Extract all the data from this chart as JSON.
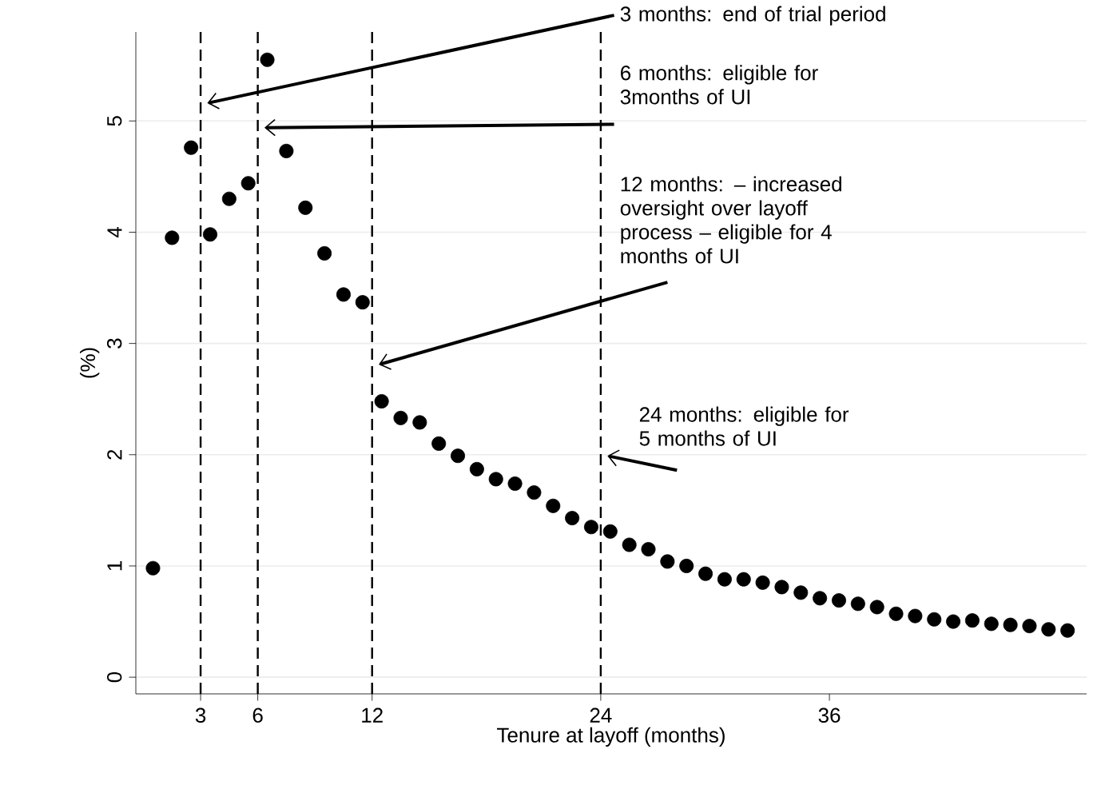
{
  "chart_data": {
    "type": "scatter",
    "xlabel": "Tenure at layoff (months)",
    "ylabel": "(%)",
    "x": [
      0.5,
      1.5,
      2.5,
      3.5,
      4.5,
      5.5,
      6.5,
      7.5,
      8.5,
      9.5,
      10.5,
      11.5,
      12.5,
      13.5,
      14.5,
      15.5,
      16.5,
      17.5,
      18.5,
      19.5,
      20.5,
      21.5,
      22.5,
      23.5,
      24.5,
      25.5,
      26.5,
      27.5,
      28.5,
      29.5,
      30.5,
      31.5,
      32.5,
      33.5,
      34.5,
      35.5,
      36.5,
      37.5,
      38.5,
      39.5,
      40.5,
      41.5,
      42.5,
      43.5,
      44.5,
      45.5,
      46.5,
      47.5,
      48.5
    ],
    "series": [
      {
        "color": "#000000",
        "values": [
          0.98,
          3.95,
          4.76,
          3.98,
          4.3,
          4.44,
          5.55,
          4.73,
          4.22,
          3.81,
          3.44,
          3.37,
          2.48,
          2.33,
          2.29,
          2.1,
          1.99,
          1.87,
          1.78,
          1.74,
          1.66,
          1.54,
          1.43,
          1.35,
          1.31,
          1.19,
          1.15,
          1.04,
          1.0,
          0.93,
          0.88,
          0.88,
          0.85,
          0.81,
          0.76,
          0.71,
          0.69,
          0.66,
          0.63,
          0.57,
          0.55,
          0.52,
          0.5,
          0.51,
          0.48,
          0.47,
          0.46,
          0.43,
          0.42
        ]
      }
    ],
    "xlim": [
      -0.4,
      49.5
    ],
    "ylim": [
      -0.15,
      5.8
    ],
    "xticks": [
      3,
      6,
      12,
      24,
      36
    ],
    "yticks": [
      0,
      1,
      2,
      3,
      4,
      5
    ],
    "grid": "y",
    "marker": "circle",
    "ref_lines": [
      {
        "axis": "x",
        "value": 3,
        "color": "#000000",
        "line_style": "dashed"
      },
      {
        "axis": "x",
        "value": 6,
        "color": "#000000",
        "line_style": "dashed"
      },
      {
        "axis": "x",
        "value": 12,
        "color": "#000000",
        "line_style": "dashed"
      },
      {
        "axis": "x",
        "value": 24,
        "color": "#000000",
        "line_style": "dashed"
      }
    ],
    "annotations": [
      {
        "text": "3 months: end of trial period",
        "x": 3,
        "y": 5.16
      },
      {
        "text": "6 months: eligible for 3months of UI",
        "x": 6,
        "y": 4.94
      },
      {
        "text": "12 months: – increased oversight over layoff process – eligible for 4 months of UI",
        "x": 12,
        "y": 2.81
      },
      {
        "text": "24 months: eligible for 5 months of UI",
        "x": 24,
        "y": 1.99
      }
    ]
  }
}
